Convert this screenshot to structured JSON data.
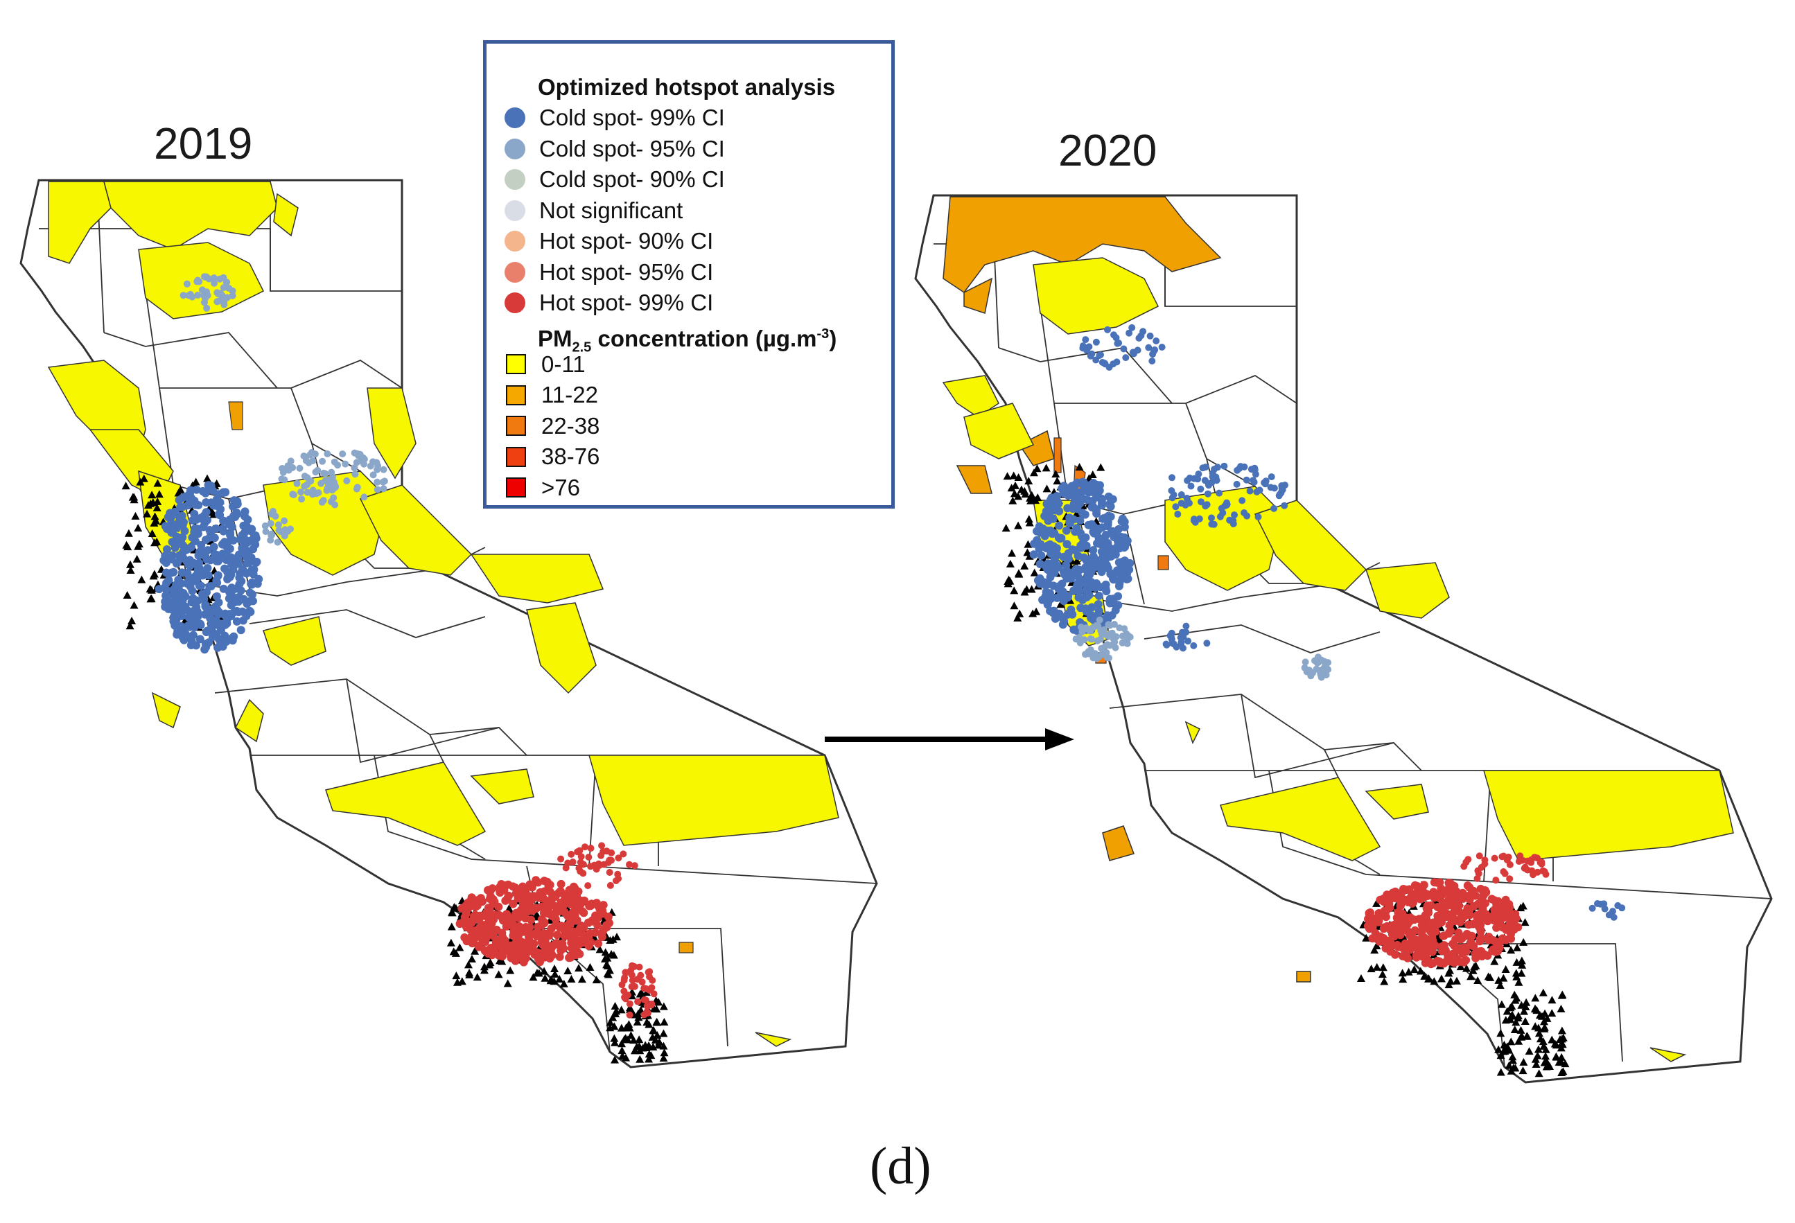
{
  "figure": {
    "panels": [
      {
        "year": "2019"
      },
      {
        "year": "2020"
      }
    ],
    "caption": "(d)"
  },
  "legend": {
    "hotspot_title": "Optimized hotspot analysis",
    "hotspot_items": [
      {
        "label": "Cold spot- 99% CI",
        "color": "#4a72b8"
      },
      {
        "label": "Cold spot- 95% CI",
        "color": "#8aa6c8"
      },
      {
        "label": "Cold spot- 90% CI",
        "color": "#c3cfc3"
      },
      {
        "label": "Not significant",
        "color": "#d8dde6"
      },
      {
        "label": "Hot spot- 90% CI",
        "color": "#f4b48c"
      },
      {
        "label": "Hot spot- 95% CI",
        "color": "#e8806c"
      },
      {
        "label": "Hot spot- 99% CI",
        "color": "#d83a3a"
      }
    ],
    "pm_title_prefix": "PM",
    "pm_title_sub": "2.5",
    "pm_title_suffix": " concentration (µg.m",
    "pm_title_sup": "-3",
    "pm_title_end": ")",
    "pm_items": [
      {
        "label": "0-11",
        "color": "#ffff00"
      },
      {
        "label": "11-22",
        "color": "#f5a800"
      },
      {
        "label": "22-38",
        "color": "#f07a10"
      },
      {
        "label": "38-76",
        "color": "#ee4010"
      },
      {
        "label": ">76",
        "color": "#ee0000"
      }
    ]
  },
  "colors": {
    "yellow": "#f7f700",
    "orange": "#f0a000",
    "dark_orange": "#f07a10",
    "red_dot": "#d83a3a",
    "blue_dot": "#4a72b8",
    "light_blue_dot": "#8aa6c8",
    "border": "#333333"
  }
}
